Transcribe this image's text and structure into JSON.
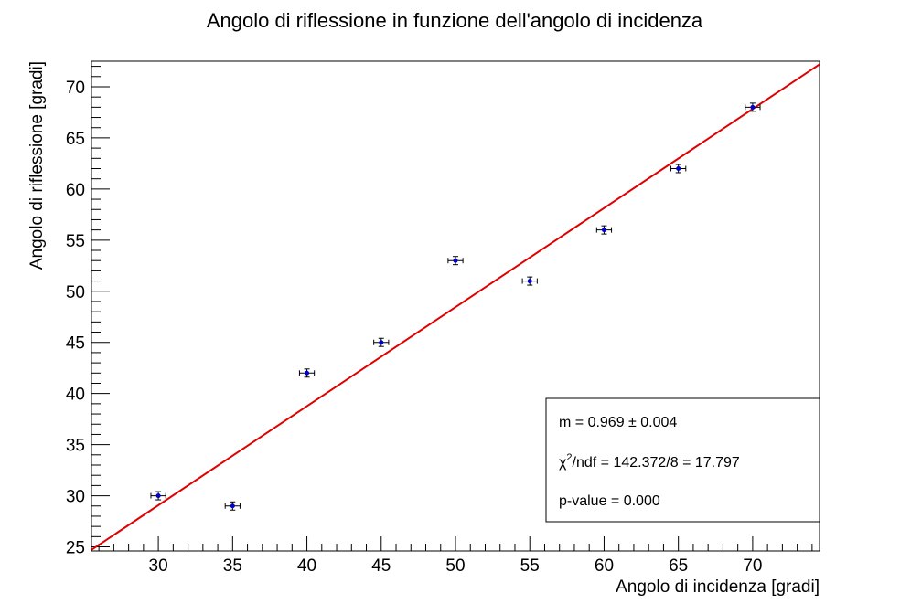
{
  "chart_data": {
    "type": "scatter",
    "title": "Angolo di riflessione in funzione dell'angolo di incidenza",
    "xlabel": "Angolo di incidenza [gradi]",
    "ylabel": "Angolo di riflessione [gradi]",
    "xlim": [
      25.5,
      74.5
    ],
    "ylim": [
      24.6,
      72.5
    ],
    "x_ticks": [
      30,
      35,
      40,
      45,
      50,
      55,
      60,
      65,
      70
    ],
    "y_ticks": [
      25,
      30,
      35,
      40,
      45,
      50,
      55,
      60,
      65,
      70
    ],
    "grid": false,
    "points": [
      {
        "x": 30,
        "y": 30,
        "xerr": 0.5,
        "yerr": 0.4
      },
      {
        "x": 35,
        "y": 29,
        "xerr": 0.5,
        "yerr": 0.4
      },
      {
        "x": 40,
        "y": 42,
        "xerr": 0.5,
        "yerr": 0.4
      },
      {
        "x": 45,
        "y": 45,
        "xerr": 0.5,
        "yerr": 0.4
      },
      {
        "x": 50,
        "y": 53,
        "xerr": 0.5,
        "yerr": 0.4
      },
      {
        "x": 55,
        "y": 51,
        "xerr": 0.5,
        "yerr": 0.4
      },
      {
        "x": 60,
        "y": 56,
        "xerr": 0.5,
        "yerr": 0.4
      },
      {
        "x": 65,
        "y": 62,
        "xerr": 0.5,
        "yerr": 0.4
      },
      {
        "x": 70,
        "y": 68,
        "xerr": 0.5,
        "yerr": 0.4
      }
    ],
    "fit": {
      "slope": 0.969,
      "x_range": [
        25.5,
        74.5
      ],
      "color": "#e00000"
    },
    "marker_color": "#0000cc",
    "stats_box": {
      "placement": "bottom-right",
      "m_line": "m = 0.969 ± 0.004",
      "chi_prefix": "χ",
      "chi_sup": "2",
      "chi_rest": "/ndf = 142.372/8 = 17.797",
      "pvalue_line": "p-value = 0.000"
    }
  }
}
